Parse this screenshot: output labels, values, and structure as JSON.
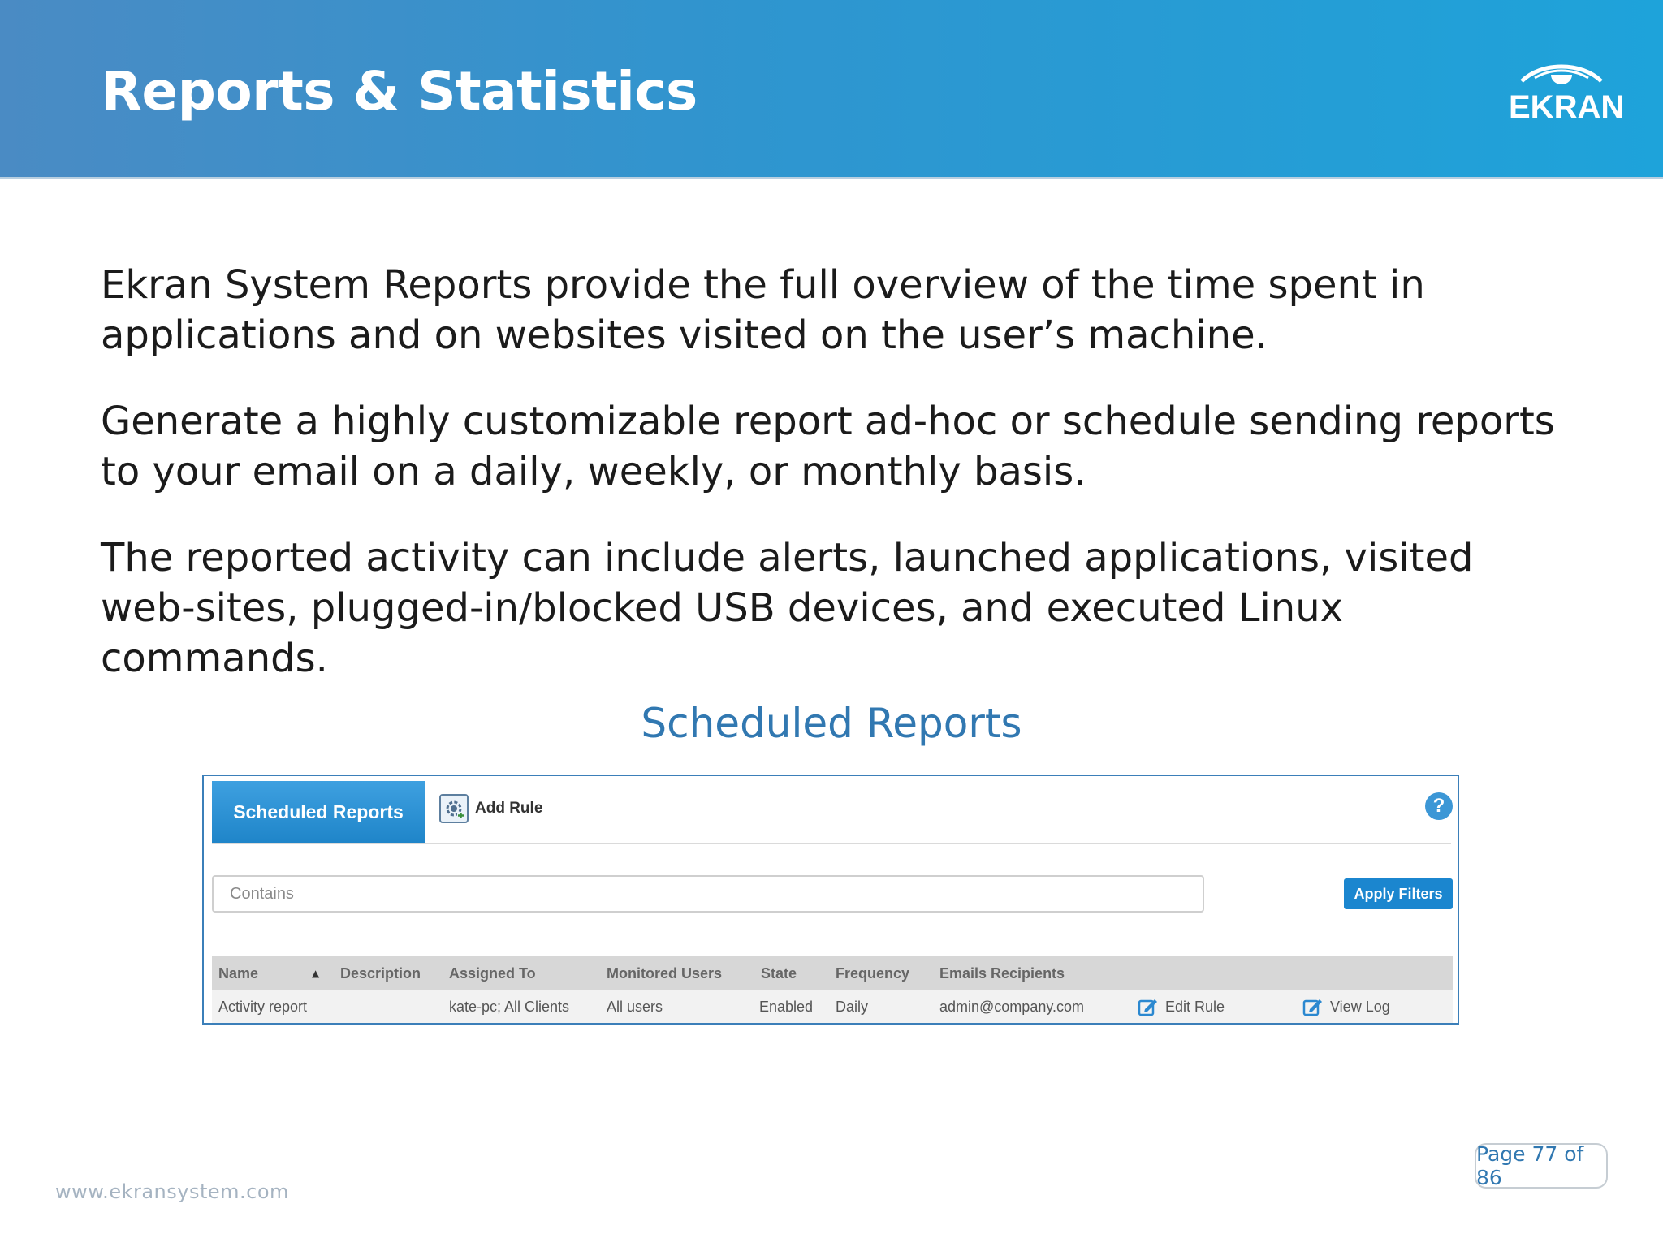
{
  "header": {
    "title": "Reports & Statistics",
    "logo_text": "EKRAN",
    "gradient": [
      "#4a8bc4",
      "#1ea3da"
    ]
  },
  "body": {
    "paragraphs": [
      "Ekran System Reports provide the full overview of the time spent in applications and on websites visited on the user’s machine.",
      "Generate a highly customizable report ad-hoc or schedule sending reports to your email on a daily, weekly, or monthly basis.",
      "The reported activity can include alerts, launched applications, visited web-sites, plugged-in/blocked USB devices, and executed Linux commands."
    ],
    "figure_title": "Scheduled Reports"
  },
  "panel": {
    "active_tab": "Scheduled Reports",
    "add_rule_label": "Add Rule",
    "add_rule_icon": "gear-plus-icon",
    "help_icon": "help-icon",
    "help_glyph": "?",
    "search_placeholder": "Contains",
    "apply_label": "Apply Filters",
    "accent": "#1b86cf",
    "columns": [
      "Name",
      "Description",
      "Assigned To",
      "Monitored Users",
      "State",
      "Frequency",
      "Emails Recipients"
    ],
    "sort_indicator": "▲",
    "rows": [
      {
        "name": "Activity report",
        "description": "",
        "assigned_to": "kate-pc; All Clients",
        "monitored_users": "All users",
        "state": "Enabled",
        "frequency": "Daily",
        "emails": "admin@company.com",
        "edit_label": "Edit Rule",
        "view_label": "View Log"
      }
    ]
  },
  "footer": {
    "url": "www.ekransystem.com",
    "page": "Page 77 of 86"
  }
}
